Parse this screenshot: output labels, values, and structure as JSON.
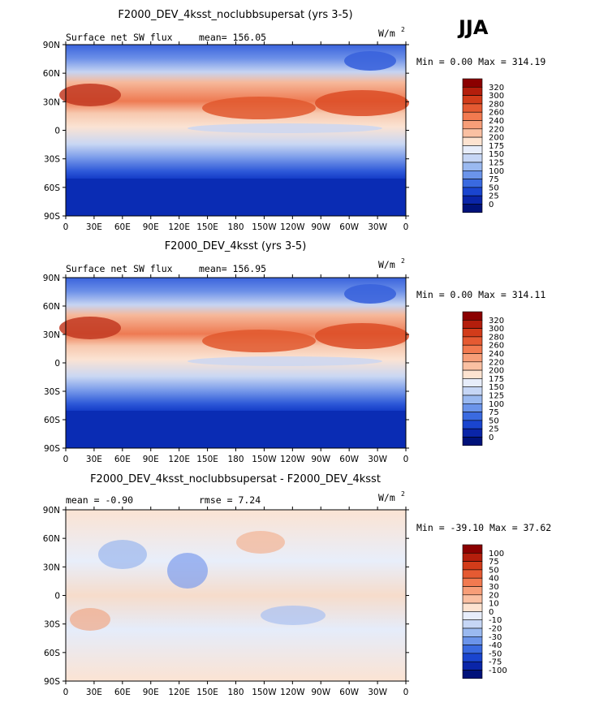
{
  "season": "JJA",
  "units_label": "W/m",
  "units_exp": "2",
  "chart_data": [
    {
      "type": "heatmap",
      "title": "F2000_DEV_4ksst_noclubbsupersat (yrs 3-5)",
      "left_label": "Surface net SW flux",
      "stat_text": "mean=  156.05",
      "minmax_text": "Min =    0.00 Max = 314.19",
      "min": 0.0,
      "max": 314.19,
      "mean": 156.05,
      "colorbar_levels": [
        "320",
        "300",
        "280",
        "260",
        "240",
        "220",
        "200",
        "175",
        "150",
        "125",
        "100",
        "75",
        "50",
        "25",
        "0"
      ],
      "lat_ticks": [
        "90N",
        "60N",
        "30N",
        "0",
        "30S",
        "60S",
        "90S"
      ],
      "lon_ticks": [
        "0",
        "30E",
        "60E",
        "90E",
        "120E",
        "150E",
        "180",
        "150W",
        "120W",
        "90W",
        "60W",
        "30W",
        "0"
      ]
    },
    {
      "type": "heatmap",
      "title": "F2000_DEV_4ksst (yrs 3-5)",
      "left_label": "Surface net SW flux",
      "stat_text": "mean=  156.95",
      "minmax_text": "Min =    0.00 Max = 314.11",
      "min": 0.0,
      "max": 314.11,
      "mean": 156.95,
      "colorbar_levels": [
        "320",
        "300",
        "280",
        "260",
        "240",
        "220",
        "200",
        "175",
        "150",
        "125",
        "100",
        "75",
        "50",
        "25",
        "0"
      ],
      "lat_ticks": [
        "90N",
        "60N",
        "30N",
        "0",
        "30S",
        "60S",
        "90S"
      ],
      "lon_ticks": [
        "0",
        "30E",
        "60E",
        "90E",
        "120E",
        "150E",
        "180",
        "150W",
        "120W",
        "90W",
        "60W",
        "30W",
        "0"
      ]
    },
    {
      "type": "heatmap",
      "title": "F2000_DEV_4ksst_noclubbsupersat - F2000_DEV_4ksst",
      "left_label": "mean =  -0.90",
      "stat_text": "rmse =    7.24",
      "minmax_text": "Min = -39.10 Max =  37.62",
      "min": -39.1,
      "max": 37.62,
      "mean": -0.9,
      "rmse": 7.24,
      "colorbar_levels": [
        "100",
        "75",
        "50",
        "40",
        "30",
        "20",
        "10",
        "0",
        "-10",
        "-20",
        "-30",
        "-40",
        "-50",
        "-75",
        "-100"
      ],
      "lat_ticks": [
        "90N",
        "60N",
        "30N",
        "0",
        "30S",
        "60S",
        "90S"
      ],
      "lon_ticks": [
        "0",
        "30E",
        "60E",
        "90E",
        "120E",
        "150E",
        "180",
        "150W",
        "120W",
        "90W",
        "60W",
        "30W",
        "0"
      ]
    }
  ],
  "colors": {
    "abs_palette": [
      "#8b0000",
      "#b41e0c",
      "#d23c1a",
      "#e55a32",
      "#f27a50",
      "#f79e78",
      "#fac0a2",
      "#fde3d0",
      "#e7edfa",
      "#c6d6f5",
      "#9ab9f0",
      "#6b94ea",
      "#3a6ae0",
      "#1a45cf",
      "#0a25a8",
      "#00127a"
    ],
    "diff_palette": [
      "#8b0000",
      "#b41e0c",
      "#d23c1a",
      "#e55a32",
      "#f27a50",
      "#f79e78",
      "#fac0a2",
      "#fde3d0",
      "#e7edfa",
      "#c6d6f5",
      "#9ab9f0",
      "#6b94ea",
      "#3a6ae0",
      "#1a45cf",
      "#0a25a8",
      "#00127a"
    ]
  }
}
